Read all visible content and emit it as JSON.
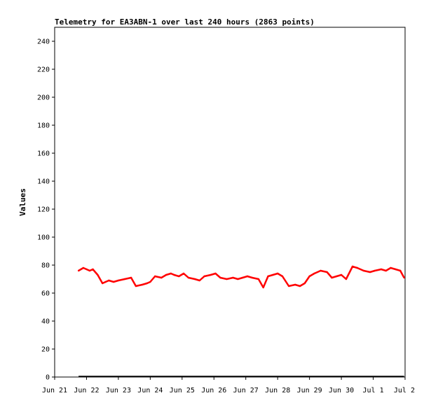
{
  "chart_data": {
    "type": "line",
    "title": "Telemetry for EA3ABN-1 over last 240 hours (2863 points)",
    "xlabel": "",
    "ylabel": "Values",
    "ylim": [
      0,
      250
    ],
    "xlim": [
      "Jun 21",
      "Jul 2"
    ],
    "x_ticks": [
      "Jun 21",
      "Jun 22",
      "Jun 23",
      "Jun 24",
      "Jun 25",
      "Jun 26",
      "Jun 27",
      "Jun 28",
      "Jun 29",
      "Jun 30",
      "Jul 1",
      "Jul 2"
    ],
    "y_ticks": [
      0,
      20,
      40,
      60,
      80,
      100,
      120,
      140,
      160,
      180,
      200,
      220,
      240
    ],
    "grid": false,
    "series": [
      {
        "color": "#ff0000",
        "x_days": [
          0.75,
          0.9,
          1.0,
          1.1,
          1.2,
          1.35,
          1.5,
          1.6,
          1.7,
          1.85,
          2.0,
          2.2,
          2.4,
          2.55,
          2.75,
          2.9,
          3.0,
          3.15,
          3.35,
          3.5,
          3.65,
          3.75,
          3.9,
          4.05,
          4.2,
          4.4,
          4.55,
          4.7,
          4.9,
          5.05,
          5.2,
          5.4,
          5.6,
          5.75,
          5.9,
          6.05,
          6.2,
          6.4,
          6.55,
          6.7,
          6.85,
          7.0,
          7.15,
          7.35,
          7.55,
          7.7,
          7.85,
          8.0,
          8.15,
          8.35,
          8.55,
          8.7,
          8.85,
          9.0,
          9.15,
          9.35,
          9.5,
          9.7,
          9.9,
          10.05,
          10.25,
          10.4,
          10.55,
          10.7,
          10.85,
          10.97
        ],
        "values": [
          76,
          78,
          77,
          76,
          77,
          73,
          67,
          68,
          69,
          68,
          69,
          70,
          71,
          65,
          66,
          67,
          68,
          72,
          71,
          73,
          74,
          73,
          72,
          74,
          71,
          70,
          69,
          72,
          73,
          74,
          71,
          70,
          71,
          70,
          71,
          72,
          71,
          70,
          64,
          72,
          73,
          74,
          72,
          65,
          66,
          65,
          67,
          72,
          74,
          76,
          75,
          71,
          72,
          73,
          70,
          79,
          78,
          76,
          75,
          76,
          77,
          76,
          78,
          77,
          76,
          71
        ]
      },
      {
        "color": "#000000",
        "x_days": [
          0.75,
          10.97
        ],
        "values": [
          0.5,
          0.5
        ]
      }
    ]
  },
  "colors": {
    "frame": "#000000",
    "background": "#ffffff"
  }
}
